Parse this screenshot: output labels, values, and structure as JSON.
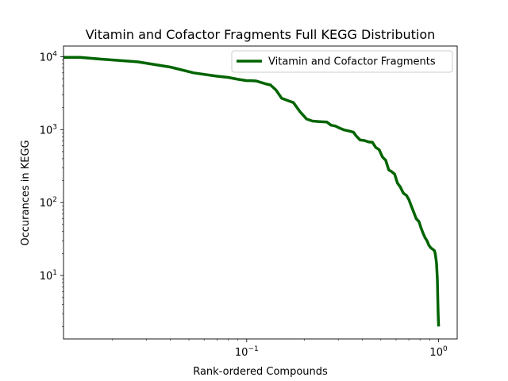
{
  "chart_data": {
    "type": "line",
    "title": "Vitamin and Cofactor Fragments Full KEGG Distribution",
    "xlabel": "Rank-ordered Compounds",
    "ylabel": "Occurances in KEGG",
    "xscale": "log",
    "yscale": "log",
    "xlim": [
      0.0111,
      1.25
    ],
    "ylim": [
      1.35,
      14000
    ],
    "grid": false,
    "legend_position": "upper right",
    "x_ticks": [
      {
        "value": 0.1,
        "base": "10",
        "exp": "−1"
      },
      {
        "value": 1,
        "base": "10",
        "exp": "0"
      }
    ],
    "y_ticks": [
      {
        "value": 10,
        "base": "10",
        "exp": "1"
      },
      {
        "value": 100,
        "base": "10",
        "exp": "2"
      },
      {
        "value": 1000,
        "base": "10",
        "exp": "3"
      },
      {
        "value": 10000,
        "base": "10",
        "exp": "4"
      }
    ],
    "series": [
      {
        "name": "Vitamin and Cofactor Fragments",
        "color": "#006400",
        "x": [
          0.0111,
          0.0135,
          0.018,
          0.027,
          0.04,
          0.053,
          0.07,
          0.08,
          0.09,
          0.1,
          0.105,
          0.112,
          0.12,
          0.127,
          0.133,
          0.142,
          0.152,
          0.164,
          0.175,
          0.19,
          0.205,
          0.22,
          0.24,
          0.262,
          0.275,
          0.29,
          0.305,
          0.322,
          0.34,
          0.36,
          0.372,
          0.39,
          0.41,
          0.43,
          0.452,
          0.47,
          0.49,
          0.51,
          0.53,
          0.55,
          0.57,
          0.59,
          0.61,
          0.63,
          0.655,
          0.68,
          0.7,
          0.72,
          0.74,
          0.765,
          0.79,
          0.81,
          0.83,
          0.85,
          0.87,
          0.89,
          0.91,
          0.93,
          0.95,
          0.96,
          0.975,
          0.985,
          0.99,
          0.995,
          1.0
        ],
        "y": [
          9800,
          9800,
          9200,
          8500,
          7200,
          6000,
          5400,
          5200,
          4900,
          4700,
          4700,
          4650,
          4400,
          4200,
          4100,
          3500,
          2700,
          2500,
          2350,
          1750,
          1400,
          1310,
          1290,
          1270,
          1150,
          1120,
          1050,
          990,
          960,
          920,
          820,
          720,
          710,
          680,
          670,
          570,
          530,
          420,
          380,
          280,
          265,
          245,
          185,
          165,
          135,
          125,
          110,
          90,
          75,
          60,
          55,
          45,
          38,
          33,
          30,
          26,
          24,
          23,
          22,
          20,
          15,
          9,
          5,
          3,
          2
        ]
      }
    ]
  }
}
